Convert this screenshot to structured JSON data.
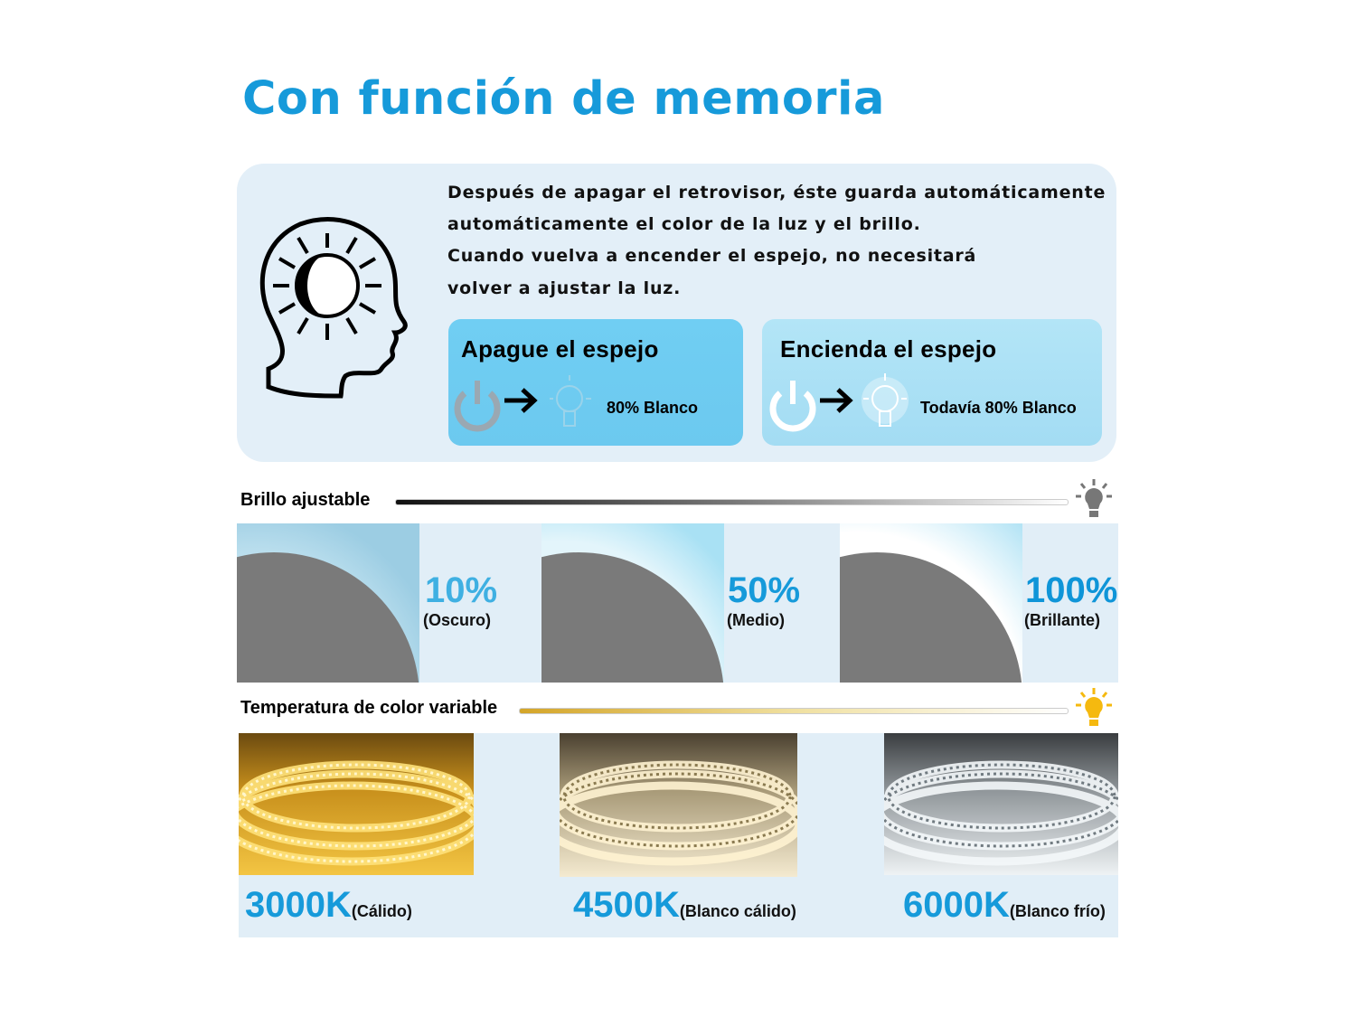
{
  "title": "Con función de memoria",
  "memory": {
    "lines": [
      "Después de apagar el retrovisor, éste guarda automáticamente",
      "automáticamente el color de la luz y el brillo.",
      "Cuando vuelva a encender el espejo, no necesitará",
      "volver a ajustar la luz."
    ],
    "off_card": {
      "title": "Apague el espejo",
      "value": "80% Blanco"
    },
    "on_card": {
      "title": "Encienda el espejo",
      "value": "Todavía 80% Blanco"
    }
  },
  "brightness": {
    "label": "Brillo ajustable",
    "levels": [
      {
        "percent": "10%",
        "desc": "(Oscuro)",
        "color": "#3fb0e2"
      },
      {
        "percent": "50%",
        "desc": "(Medio)",
        "color": "#169ada"
      },
      {
        "percent": "100%",
        "desc": "(Brillante)",
        "color": "#0f95d8"
      }
    ]
  },
  "temperature": {
    "label": "Temperatura de color variable",
    "options": [
      {
        "kelvin": "3000K",
        "desc": "(Cálido)",
        "color": "#f5c542"
      },
      {
        "kelvin": "4500K",
        "desc": "(Blanco cálido)",
        "color": "#f3e2b5"
      },
      {
        "kelvin": "6000K",
        "desc": "(Blanco frío)",
        "color": "#e8eef2"
      }
    ]
  },
  "colors": {
    "accent": "#169ada",
    "panel": "#e3eff8"
  }
}
